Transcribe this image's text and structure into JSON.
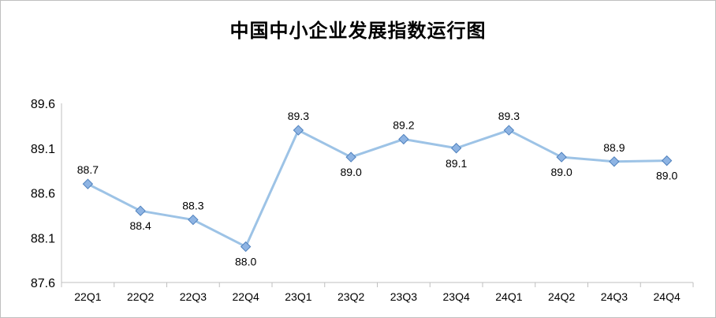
{
  "chart_data": {
    "type": "line",
    "title": "中国中小企业发展指数运行图",
    "xlabel": "",
    "ylabel": "",
    "categories": [
      "22Q1",
      "22Q2",
      "22Q3",
      "22Q4",
      "23Q1",
      "23Q2",
      "23Q3",
      "23Q4",
      "24Q1",
      "24Q2",
      "24Q3",
      "24Q4"
    ],
    "series": [
      {
        "values": [
          88.7,
          88.4,
          88.3,
          88.0,
          89.3,
          89.0,
          89.2,
          89.1,
          89.3,
          89.0,
          88.95,
          88.96
        ],
        "data_labels": [
          "88.7",
          "88.4",
          "88.3",
          "88.0",
          "89.3",
          "89.0",
          "89.2",
          "89.1",
          "89.3",
          "89.0",
          "88.9",
          "89.0"
        ],
        "label_positions": [
          "above",
          "below",
          "above",
          "below",
          "above",
          "below",
          "above",
          "below",
          "above",
          "below",
          "above",
          "below"
        ],
        "color": "#9dc3e6",
        "marker_fill": "#8eb4e3",
        "marker_stroke": "#4f81bd"
      }
    ],
    "yticks": [
      "89.6",
      "89.1",
      "88.6",
      "88.1",
      "87.6"
    ],
    "ylim": [
      87.6,
      89.6
    ],
    "grid": false,
    "legend": "none"
  }
}
